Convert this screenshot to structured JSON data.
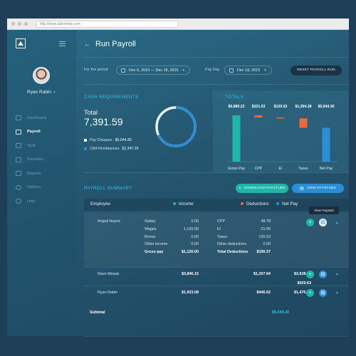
{
  "browser": {
    "url": "http://www.ablestribe.com"
  },
  "sidebar": {
    "user_name": "Ryan Rabin",
    "items": [
      {
        "label": "Dashboard",
        "icon": "dashboard-icon",
        "active": false
      },
      {
        "label": "Payroll",
        "icon": "payroll-icon",
        "active": true
      },
      {
        "label": "Staff",
        "icon": "staff-icon",
        "active": false
      },
      {
        "label": "Paystubs",
        "icon": "paystubs-icon",
        "active": false
      },
      {
        "label": "Reports",
        "icon": "reports-icon",
        "active": false
      },
      {
        "label": "Options",
        "icon": "options-icon",
        "active": false
      },
      {
        "label": "Help",
        "icon": "help-icon",
        "active": false
      }
    ]
  },
  "header": {
    "title": "Run Payroll"
  },
  "filters": {
    "period_label": "For the period",
    "period_value": "Dec 5, 2015 — Dec 18, 2015",
    "payday_label": "Pay Day",
    "payday_value": "Dec 18, 2015",
    "reset_label": "RESET PAYROLL RUN"
  },
  "cash": {
    "title": "CASH REQUIREMENTS",
    "total_label": "Total",
    "total_value": "7,391.59",
    "legend": [
      {
        "label": "Pay Cheques:",
        "value": "$5,044.30",
        "color": "#ffffff"
      },
      {
        "label": "CRA Remittances:",
        "value": "$2,347.29",
        "color": "#2a8fd6"
      }
    ],
    "donut_fraction": 0.68
  },
  "totals": {
    "title": "TOTALS"
  },
  "chart_data": {
    "type": "bar",
    "title": "TOTALS",
    "categories": [
      "Gross Pay",
      "CPP",
      "EI",
      "Taxes",
      "Net Pay"
    ],
    "values": [
      6889.23,
      321.03,
      129.52,
      1394.38,
      5044.3
    ],
    "data_labels": [
      "$6,889.23",
      "$321.03",
      "$129.52",
      "$1,394.38",
      "$5,044.30"
    ],
    "style": "waterfall",
    "colors": [
      "#1fb6a9",
      "#f0693a",
      "#f0693a",
      "#f0693a",
      "#2a8fd6"
    ]
  },
  "summary": {
    "title": "PAYROLL SUMMARY",
    "download_label": "DOWNLOAD PAYSTUBS",
    "view_label": "VIEW PAYSTUBS",
    "columns": {
      "employee": "Employee",
      "income": "Income",
      "deductions": "Deductions",
      "netpay": "Net Pay"
    },
    "column_colors": {
      "income": "#1fb6a9",
      "deductions": "#f0693a",
      "netpay": "#2a8fd6"
    },
    "tooltip": "View Paystub",
    "expanded": {
      "name": "Angeli Hayes",
      "income": [
        {
          "label": "Salary",
          "value": "0.00"
        },
        {
          "label": "Wages",
          "value": "1,120.00"
        },
        {
          "label": "Bonus",
          "value": "0.00"
        },
        {
          "label": "Other income",
          "value": "0.00"
        },
        {
          "label": "Gross pay",
          "value": "$1,120.00"
        }
      ],
      "deductions": [
        {
          "label": "CPP",
          "value": "48.78"
        },
        {
          "label": "EI",
          "value": "21.06"
        },
        {
          "label": "Taxes",
          "value": "120.53"
        },
        {
          "label": "Other deductions",
          "value": "0.00"
        },
        {
          "label": "Total Deductions",
          "value": "$190.37"
        }
      ],
      "netpay": "$929.63"
    },
    "rows": [
      {
        "name": "Dave Mowat",
        "income": "$3,846.15",
        "deductions": "$1,207.94",
        "netpay": "$2,638.21"
      },
      {
        "name": "Ryan Rabin",
        "income": "$1,923.08",
        "deductions": "$446.62",
        "netpay": "$1,476.46"
      }
    ],
    "subtotal_label": "Subtotal",
    "subtotal_value": "$5,044.30"
  }
}
